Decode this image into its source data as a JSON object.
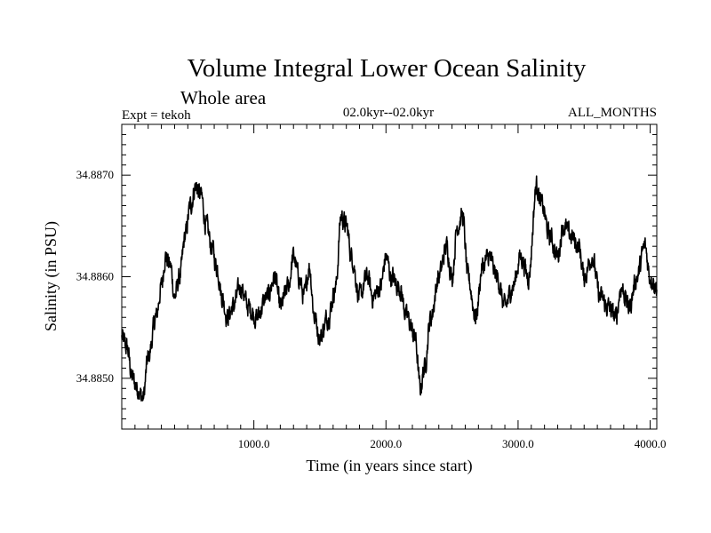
{
  "chart_data": {
    "type": "line",
    "title": "Volume Integral Lower Ocean Salinity",
    "subtitle": "Whole area",
    "left_label": "Expt = tekoh",
    "center_label": "02.0kyr--02.0kyr",
    "right_label": "ALL_MONTHS",
    "xlabel": "Time (in years since start)",
    "ylabel": "Salinity (in PSU)",
    "xlim": [
      0,
      4050
    ],
    "ylim": [
      34.8845,
      34.8875
    ],
    "x_ticks": [
      {
        "value": 1000,
        "label": "1000.0"
      },
      {
        "value": 2000,
        "label": "2000.0"
      },
      {
        "value": 3000,
        "label": "3000.0"
      },
      {
        "value": 4000,
        "label": "4000.0"
      }
    ],
    "y_ticks": [
      {
        "value": 34.885,
        "label": "34.8850"
      },
      {
        "value": 34.886,
        "label": "34.8860"
      },
      {
        "value": 34.887,
        "label": "34.8870"
      }
    ],
    "grid": false,
    "series": [
      {
        "name": "salinity",
        "color": "#000000",
        "noise_amplitude": 0.00016,
        "anchors": [
          [
            0,
            34.8854
          ],
          [
            40,
            34.8853
          ],
          [
            80,
            34.885
          ],
          [
            120,
            34.8849
          ],
          [
            160,
            34.8848
          ],
          [
            200,
            34.8852
          ],
          [
            260,
            34.8856
          ],
          [
            300,
            34.8859
          ],
          [
            330,
            34.8862
          ],
          [
            370,
            34.8861
          ],
          [
            400,
            34.8858
          ],
          [
            440,
            34.886
          ],
          [
            480,
            34.8864
          ],
          [
            520,
            34.8867
          ],
          [
            560,
            34.8869
          ],
          [
            600,
            34.8868
          ],
          [
            640,
            34.8865
          ],
          [
            680,
            34.8863
          ],
          [
            720,
            34.8861
          ],
          [
            760,
            34.8858
          ],
          [
            800,
            34.8856
          ],
          [
            840,
            34.8857
          ],
          [
            900,
            34.8859
          ],
          [
            960,
            34.8857
          ],
          [
            1020,
            34.8856
          ],
          [
            1100,
            34.8858
          ],
          [
            1160,
            34.886
          ],
          [
            1200,
            34.8857
          ],
          [
            1260,
            34.8859
          ],
          [
            1300,
            34.8862
          ],
          [
            1340,
            34.886
          ],
          [
            1380,
            34.8858
          ],
          [
            1420,
            34.8861
          ],
          [
            1460,
            34.8856
          ],
          [
            1500,
            34.8854
          ],
          [
            1560,
            34.8856
          ],
          [
            1620,
            34.8859
          ],
          [
            1660,
            34.8866
          ],
          [
            1700,
            34.8865
          ],
          [
            1740,
            34.8862
          ],
          [
            1800,
            34.8858
          ],
          [
            1860,
            34.886
          ],
          [
            1900,
            34.8858
          ],
          [
            1960,
            34.8859
          ],
          [
            2000,
            34.8862
          ],
          [
            2040,
            34.886
          ],
          [
            2100,
            34.8859
          ],
          [
            2160,
            34.8856
          ],
          [
            2220,
            34.8854
          ],
          [
            2260,
            34.8849
          ],
          [
            2290,
            34.8851
          ],
          [
            2340,
            34.8856
          ],
          [
            2400,
            34.886
          ],
          [
            2460,
            34.8863
          ],
          [
            2500,
            34.886
          ],
          [
            2540,
            34.8865
          ],
          [
            2580,
            34.8866
          ],
          [
            2620,
            34.886
          ],
          [
            2680,
            34.8856
          ],
          [
            2730,
            34.8861
          ],
          [
            2780,
            34.8862
          ],
          [
            2840,
            34.886
          ],
          [
            2900,
            34.8857
          ],
          [
            2960,
            34.8859
          ],
          [
            3020,
            34.8862
          ],
          [
            3080,
            34.886
          ],
          [
            3140,
            34.8869
          ],
          [
            3180,
            34.8867
          ],
          [
            3240,
            34.8864
          ],
          [
            3300,
            34.8862
          ],
          [
            3340,
            34.8865
          ],
          [
            3400,
            34.8864
          ],
          [
            3460,
            34.8863
          ],
          [
            3500,
            34.886
          ],
          [
            3560,
            34.8862
          ],
          [
            3620,
            34.8858
          ],
          [
            3680,
            34.8857
          ],
          [
            3740,
            34.8856
          ],
          [
            3780,
            34.8859
          ],
          [
            3840,
            34.8857
          ],
          [
            3900,
            34.886
          ],
          [
            3960,
            34.8863
          ],
          [
            4000,
            34.886
          ],
          [
            4050,
            34.8859
          ]
        ]
      }
    ]
  }
}
